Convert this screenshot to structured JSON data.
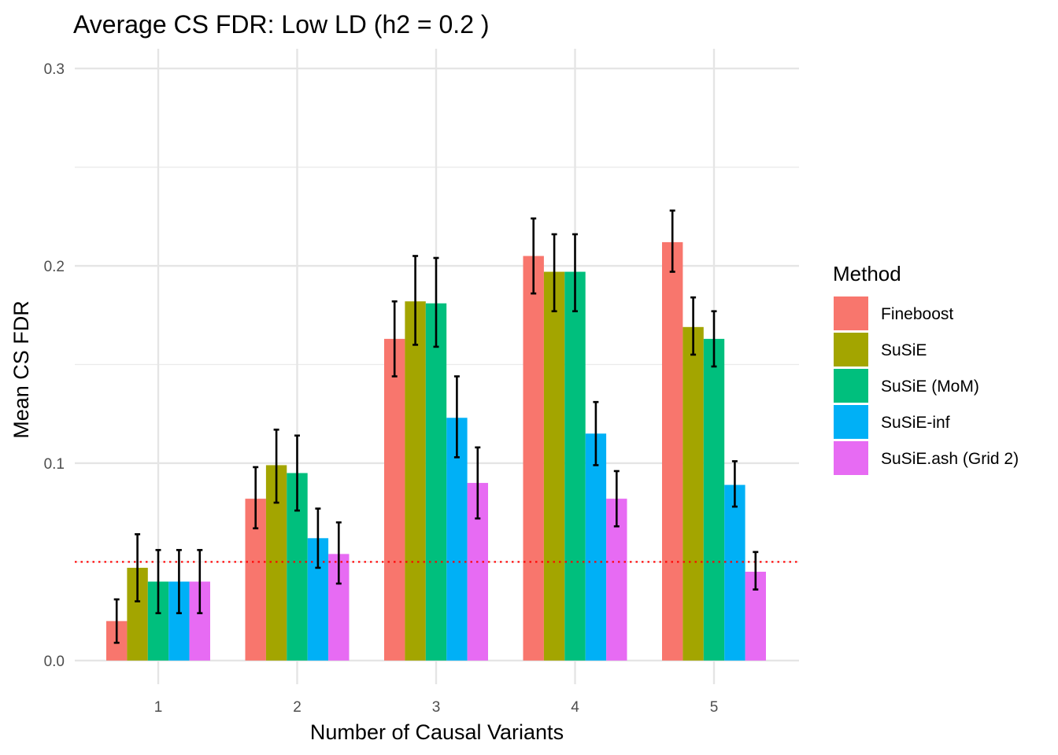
{
  "chart_data": {
    "type": "bar",
    "title": "Average CS FDR: Low LD (h2 = 0.2 )",
    "xlabel": "Number of Causal Variants",
    "ylabel": "Mean CS FDR",
    "categories": [
      "1",
      "2",
      "3",
      "4",
      "5"
    ],
    "ylim": [
      -0.012,
      0.31
    ],
    "yticks": [
      "0.0",
      "0.1",
      "0.2",
      "0.3"
    ],
    "grid": true,
    "reference_line": {
      "y": 0.05,
      "style": "dotted",
      "color": "#FF0000"
    },
    "legend": {
      "title": "Method",
      "position": "right"
    },
    "series": [
      {
        "name": "Fineboost",
        "color": "#F8766D",
        "values": [
          0.02,
          0.082,
          0.163,
          0.205,
          0.212
        ],
        "err_low": [
          0.009,
          0.067,
          0.144,
          0.186,
          0.197
        ],
        "err_high": [
          0.031,
          0.098,
          0.182,
          0.224,
          0.228
        ]
      },
      {
        "name": "SuSiE",
        "color": "#A3A500",
        "values": [
          0.047,
          0.099,
          0.182,
          0.197,
          0.169
        ],
        "err_low": [
          0.03,
          0.08,
          0.16,
          0.177,
          0.155
        ],
        "err_high": [
          0.064,
          0.117,
          0.205,
          0.216,
          0.184
        ]
      },
      {
        "name": "SuSiE (MoM)",
        "color": "#00BF7D",
        "values": [
          0.04,
          0.095,
          0.181,
          0.197,
          0.163
        ],
        "err_low": [
          0.024,
          0.076,
          0.159,
          0.177,
          0.149
        ],
        "err_high": [
          0.056,
          0.114,
          0.204,
          0.216,
          0.177
        ]
      },
      {
        "name": "SuSiE-inf",
        "color": "#00B0F6",
        "values": [
          0.04,
          0.062,
          0.123,
          0.115,
          0.089
        ],
        "err_low": [
          0.024,
          0.047,
          0.103,
          0.099,
          0.078
        ],
        "err_high": [
          0.056,
          0.077,
          0.144,
          0.131,
          0.101
        ]
      },
      {
        "name": "SuSiE.ash (Grid 2)",
        "color": "#E76BF3",
        "values": [
          0.04,
          0.054,
          0.09,
          0.082,
          0.045
        ],
        "err_low": [
          0.024,
          0.039,
          0.072,
          0.068,
          0.036
        ],
        "err_high": [
          0.056,
          0.07,
          0.108,
          0.096,
          0.055
        ]
      }
    ]
  }
}
